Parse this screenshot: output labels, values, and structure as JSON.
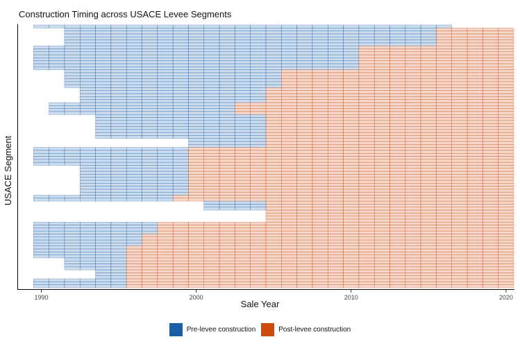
{
  "chart_data": {
    "type": "heatmap",
    "title": "Construction Timing across USACE Levee Segments",
    "xlabel": "Sale Year",
    "ylabel": "USACE Segment",
    "xlim": [
      1988.5,
      2020.5
    ],
    "x_ticks": [
      1990,
      2000,
      2010,
      2020
    ],
    "grid": false,
    "legend_position": "bottom",
    "legend": [
      {
        "key": "pre",
        "label": "Pre-levee construction",
        "color": "#1a5ea8"
      },
      {
        "key": "post",
        "label": "Post-levee construction",
        "color": "#cc4a0c"
      }
    ],
    "segment_groups": [
      {
        "rows": 1,
        "years": [
          1990,
          2016
        ],
        "construction": 2017
      },
      {
        "rows": 6,
        "years": [
          1992,
          2020
        ],
        "construction": 2016
      },
      {
        "rows": 8,
        "years": [
          1990,
          2020
        ],
        "construction": 2011
      },
      {
        "rows": 6,
        "years": [
          1992,
          2020
        ],
        "construction": 2006
      },
      {
        "rows": 5,
        "years": [
          1993,
          2020
        ],
        "construction": 2005
      },
      {
        "rows": 4,
        "years": [
          1991,
          2020
        ],
        "construction": 2003
      },
      {
        "rows": 8,
        "years": [
          1994,
          2020
        ],
        "construction": 2005
      },
      {
        "rows": 3,
        "years": [
          2000,
          2020
        ],
        "construction": 2005
      },
      {
        "rows": 6,
        "years": [
          1990,
          2020
        ],
        "construction": 2000
      },
      {
        "rows": 10,
        "years": [
          1993,
          2020
        ],
        "construction": 2000
      },
      {
        "rows": 2,
        "years": [
          1990,
          2020
        ],
        "construction": 1999
      },
      {
        "rows": 3,
        "years": [
          2001,
          2020
        ],
        "construction": 2005
      },
      {
        "rows": 4,
        "years": [
          2005,
          2020
        ],
        "construction": 2005
      },
      {
        "rows": 4,
        "years": [
          1990,
          2020
        ],
        "construction": 1998
      },
      {
        "rows": 4,
        "years": [
          1990,
          2020
        ],
        "construction": 1997
      },
      {
        "rows": 4,
        "years": [
          1990,
          2020
        ],
        "construction": 1996
      },
      {
        "rows": 4,
        "years": [
          1992,
          2020
        ],
        "construction": 1996
      },
      {
        "rows": 3,
        "years": [
          1994,
          2020
        ],
        "construction": 1996
      },
      {
        "rows": 3,
        "years": [
          1990,
          2020
        ],
        "construction": 1996
      }
    ]
  }
}
